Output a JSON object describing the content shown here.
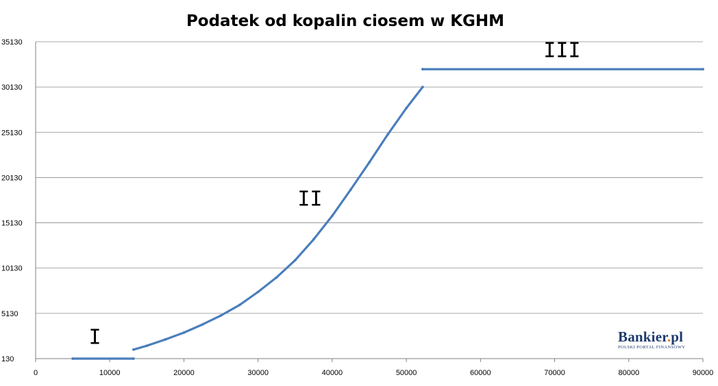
{
  "chart_data": {
    "type": "scatter",
    "title": "Podatek od kopalin ciosem w KGHM",
    "xlabel": "",
    "ylabel": "",
    "xlim": [
      0,
      90000
    ],
    "ylim": [
      130,
      35130
    ],
    "x_ticks": [
      "0",
      "10000",
      "20000",
      "30000",
      "40000",
      "50000",
      "60000",
      "70000",
      "80000",
      "90000"
    ],
    "y_ticks": [
      "130",
      "5130",
      "10130",
      "15130",
      "20130",
      "25130",
      "30130",
      "35130"
    ],
    "grid": "horizontal",
    "legend": "none",
    "series_color": "#4a7ebb",
    "regions": [
      {
        "label": "I",
        "x": 8000,
        "y": 2500
      },
      {
        "label": "II",
        "x": 37000,
        "y": 17800
      },
      {
        "label": "III",
        "x": 71000,
        "y": 34200
      }
    ],
    "series": [
      {
        "segments": [
          {
            "x": [
              5000,
              13200
            ],
            "y": [
              130,
              130
            ]
          },
          {
            "x": [
              13200,
              15000,
              17500,
              20000,
              22500,
              25000,
              27500,
              30000,
              32500,
              35000,
              37500,
              40000,
              42500,
              45000,
              47500,
              50000,
              52200
            ],
            "y": [
              1130,
              1550,
              2250,
              3000,
              3900,
              4900,
              6050,
              7500,
              9100,
              11000,
              13300,
              15900,
              18800,
              21800,
              24900,
              27800,
              30130
            ]
          },
          {
            "x": [
              52200,
              90000
            ],
            "y": [
              32100,
              32100
            ]
          }
        ]
      }
    ]
  },
  "logo": {
    "name": "Bankier",
    "dot": ".",
    "tld": "pl",
    "tagline": "POLSKI PORTAL FINANSOWY"
  }
}
